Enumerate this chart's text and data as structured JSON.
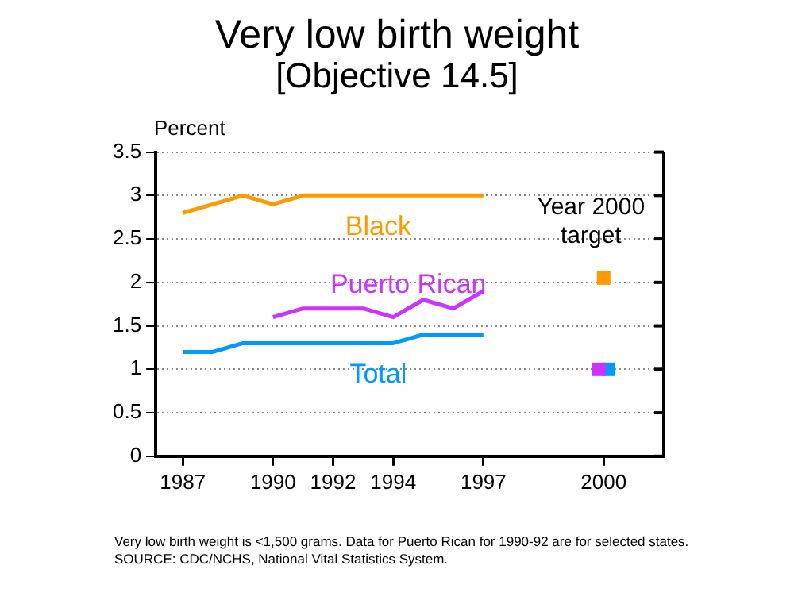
{
  "chart_data": {
    "type": "line",
    "title": "Very low birth weight",
    "subtitle": "[Objective 14.5]",
    "ylabel": "Percent",
    "categories": [
      "1987",
      null,
      null,
      "1990",
      null,
      "1992",
      null,
      "1994",
      null,
      null,
      "1997",
      null,
      null,
      null,
      "2000"
    ],
    "series": [
      {
        "name": "Black",
        "color": "#ff9900",
        "values": [
          2.8,
          2.9,
          3.0,
          2.9,
          3.0,
          3.0,
          3.0,
          3.0,
          3.0,
          3.0,
          3.0,
          null,
          null,
          null,
          null
        ]
      },
      {
        "name": "Puerto Rican",
        "color": "#cc33ff",
        "values": [
          null,
          null,
          null,
          1.6,
          1.7,
          1.7,
          1.7,
          1.6,
          1.8,
          1.7,
          1.9,
          null,
          null,
          null,
          null
        ]
      },
      {
        "name": "Total",
        "color": "#0099ff",
        "values": [
          1.2,
          1.2,
          1.3,
          1.3,
          1.3,
          1.3,
          1.3,
          1.3,
          1.4,
          1.4,
          1.4,
          null,
          null,
          null,
          null
        ]
      },
      {
        "type": "scatter",
        "color": "#ff9900",
        "values": [
          null,
          null,
          null,
          null,
          null,
          null,
          null,
          null,
          null,
          null,
          null,
          null,
          null,
          null,
          2.05
        ],
        "marker": "square"
      },
      {
        "type": "scatter",
        "color": "#cc33ff",
        "values": [
          null,
          null,
          null,
          null,
          null,
          null,
          null,
          null,
          null,
          null,
          null,
          null,
          null,
          null,
          1.0
        ],
        "marker": "square"
      },
      {
        "type": "scatter",
        "color": "#0099ff",
        "values": [
          null,
          null,
          null,
          null,
          null,
          null,
          null,
          null,
          null,
          null,
          null,
          null,
          null,
          null,
          1.0
        ],
        "marker": "square"
      }
    ],
    "ylim": [
      0,
      3.5
    ],
    "yticks": [
      0,
      0.5,
      1,
      1.5,
      2,
      2.5,
      3,
      3.5
    ],
    "grid": "y",
    "legend": false,
    "marker": "none",
    "line_style": "solid",
    "annotations": [
      "Year 2000 target",
      "Very low birth weight is <1,500 grams.  Data for Puerto Rican for 1990-92 are for selected states.",
      "SOURCE: CDC/NCHS, National Vital Statistics System."
    ]
  }
}
